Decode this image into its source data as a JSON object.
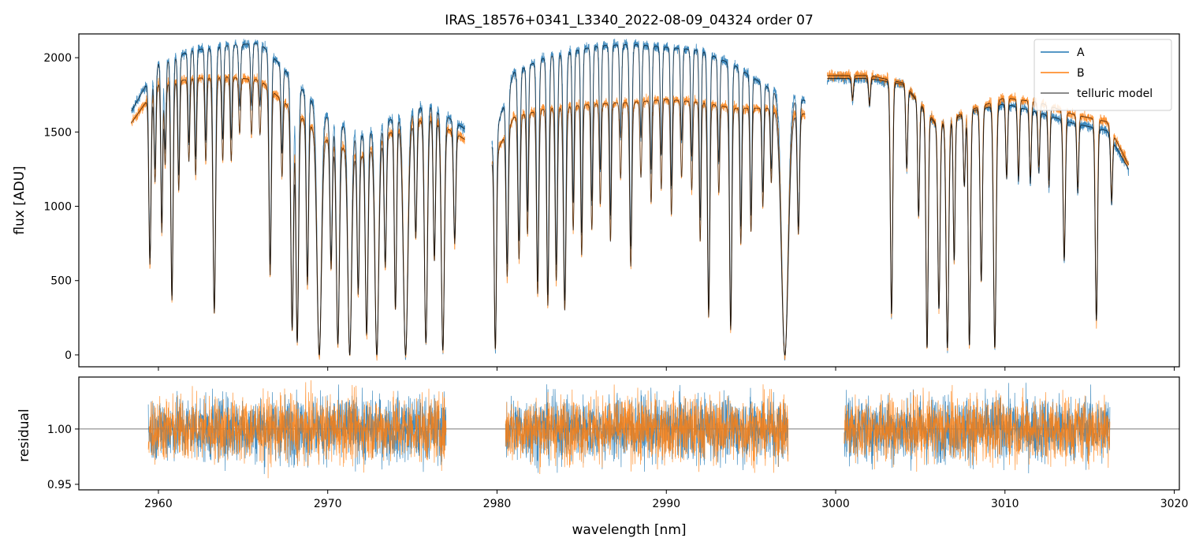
{
  "chart_data": [
    {
      "type": "line",
      "title": "IRAS_18576+0341_L3340_2022-08-09_04324  order 07",
      "xlabel": "",
      "ylabel": "flux [ADU]",
      "xlim": [
        2955.3,
        3020.3
      ],
      "ylim": [
        -80,
        2160
      ],
      "yticks": [
        0,
        500,
        1000,
        1500,
        2000
      ],
      "ytick_labels": [
        "0",
        "500",
        "1000",
        "1500",
        "2000"
      ],
      "legend_position": "top-right",
      "segments": [
        [
          2958.4,
          2978.1
        ],
        [
          2979.7,
          2998.2
        ],
        [
          2999.5,
          3017.3
        ]
      ],
      "series": [
        {
          "name": "A",
          "color": "#1f77b4"
        },
        {
          "name": "B",
          "color": "#ff7f0e"
        },
        {
          "name": "telluric model",
          "color": "#000000"
        }
      ],
      "continuum_A": [
        [
          2958.4,
          1640
        ],
        [
          2960.0,
          1960
        ],
        [
          2962.0,
          2050
        ],
        [
          2964.0,
          2080
        ],
        [
          2966.0,
          2100
        ],
        [
          2968.0,
          1850
        ],
        [
          2970.0,
          1600
        ],
        [
          2972.0,
          1480
        ],
        [
          2974.0,
          1600
        ],
        [
          2976.0,
          1690
        ],
        [
          2978.1,
          1520
        ],
        [
          2979.7,
          1420
        ],
        [
          2981.0,
          1900
        ],
        [
          2983.0,
          2010
        ],
        [
          2986.0,
          2080
        ],
        [
          2988.0,
          2090
        ],
        [
          2990.0,
          2070
        ],
        [
          2992.0,
          2050
        ],
        [
          2994.0,
          1950
        ],
        [
          2996.0,
          1800
        ],
        [
          2998.2,
          1710
        ],
        [
          2999.5,
          1860
        ],
        [
          3002.0,
          1860
        ],
        [
          3004.0,
          1820
        ],
        [
          3006.0,
          1540
        ],
        [
          3008.0,
          1640
        ],
        [
          3010.0,
          1690
        ],
        [
          3012.0,
          1630
        ],
        [
          3014.0,
          1560
        ],
        [
          3016.0,
          1510
        ],
        [
          3017.3,
          1250
        ]
      ],
      "continuum_B": [
        [
          2958.4,
          1560
        ],
        [
          2960.0,
          1820
        ],
        [
          2962.0,
          1860
        ],
        [
          2964.0,
          1870
        ],
        [
          2966.0,
          1850
        ],
        [
          2968.0,
          1640
        ],
        [
          2970.0,
          1450
        ],
        [
          2972.0,
          1340
        ],
        [
          2974.0,
          1520
        ],
        [
          2976.0,
          1600
        ],
        [
          2978.1,
          1450
        ],
        [
          2979.7,
          1300
        ],
        [
          2981.0,
          1600
        ],
        [
          2983.0,
          1660
        ],
        [
          2986.0,
          1690
        ],
        [
          2988.0,
          1700
        ],
        [
          2990.0,
          1720
        ],
        [
          2992.0,
          1700
        ],
        [
          2994.0,
          1660
        ],
        [
          2996.0,
          1660
        ],
        [
          2998.2,
          1620
        ],
        [
          2999.5,
          1880
        ],
        [
          3002.0,
          1880
        ],
        [
          3004.0,
          1830
        ],
        [
          3006.0,
          1550
        ],
        [
          3008.0,
          1650
        ],
        [
          3010.0,
          1730
        ],
        [
          3012.0,
          1700
        ],
        [
          3014.0,
          1620
        ],
        [
          3016.0,
          1570
        ],
        [
          3017.3,
          1280
        ]
      ],
      "absorption_lines": [
        [
          2959.5,
          0.65,
          0.06
        ],
        [
          2959.8,
          0.35,
          0.05
        ],
        [
          2960.2,
          0.55,
          0.05
        ],
        [
          2960.4,
          0.3,
          0.05
        ],
        [
          2960.8,
          0.8,
          0.06
        ],
        [
          2961.2,
          0.4,
          0.05
        ],
        [
          2961.8,
          0.3,
          0.05
        ],
        [
          2962.2,
          0.35,
          0.05
        ],
        [
          2962.8,
          0.3,
          0.05
        ],
        [
          2963.3,
          0.85,
          0.07
        ],
        [
          2963.8,
          0.3,
          0.05
        ],
        [
          2964.3,
          0.3,
          0.05
        ],
        [
          2964.8,
          0.2,
          0.05
        ],
        [
          2965.5,
          0.2,
          0.05
        ],
        [
          2966.0,
          0.2,
          0.05
        ],
        [
          2966.6,
          0.7,
          0.06
        ],
        [
          2967.3,
          0.3,
          0.05
        ],
        [
          2967.9,
          0.9,
          0.07
        ],
        [
          2968.2,
          0.95,
          0.07
        ],
        [
          2968.8,
          0.7,
          0.06
        ],
        [
          2969.5,
          1.0,
          0.12
        ],
        [
          2970.2,
          0.6,
          0.06
        ],
        [
          2970.6,
          0.95,
          0.08
        ],
        [
          2971.3,
          1.0,
          0.1
        ],
        [
          2971.8,
          0.7,
          0.06
        ],
        [
          2972.3,
          0.9,
          0.07
        ],
        [
          2972.9,
          1.0,
          0.1
        ],
        [
          2973.4,
          0.6,
          0.06
        ],
        [
          2974.0,
          0.8,
          0.06
        ],
        [
          2974.6,
          1.0,
          0.12
        ],
        [
          2975.2,
          0.5,
          0.06
        ],
        [
          2975.8,
          0.95,
          0.08
        ],
        [
          2976.3,
          0.6,
          0.06
        ],
        [
          2976.8,
          0.98,
          0.08
        ],
        [
          2977.5,
          0.5,
          0.06
        ],
        [
          2979.9,
          0.97,
          0.06
        ],
        [
          2980.6,
          0.65,
          0.06
        ],
        [
          2981.3,
          0.6,
          0.06
        ],
        [
          2981.8,
          0.5,
          0.05
        ],
        [
          2982.4,
          0.75,
          0.06
        ],
        [
          2983.0,
          0.8,
          0.06
        ],
        [
          2983.5,
          0.7,
          0.06
        ],
        [
          2984.0,
          0.82,
          0.07
        ],
        [
          2984.5,
          0.5,
          0.05
        ],
        [
          2985.0,
          0.6,
          0.05
        ],
        [
          2985.6,
          0.5,
          0.05
        ],
        [
          2986.1,
          0.4,
          0.05
        ],
        [
          2986.7,
          0.55,
          0.05
        ],
        [
          2987.3,
          0.3,
          0.05
        ],
        [
          2987.9,
          0.65,
          0.06
        ],
        [
          2988.5,
          0.3,
          0.05
        ],
        [
          2989.1,
          0.4,
          0.05
        ],
        [
          2989.7,
          0.35,
          0.05
        ],
        [
          2990.3,
          0.45,
          0.05
        ],
        [
          2990.9,
          0.3,
          0.05
        ],
        [
          2991.5,
          0.35,
          0.05
        ],
        [
          2992.0,
          0.55,
          0.05
        ],
        [
          2992.5,
          0.85,
          0.06
        ],
        [
          2993.1,
          0.35,
          0.05
        ],
        [
          2993.8,
          0.9,
          0.06
        ],
        [
          2994.4,
          0.55,
          0.05
        ],
        [
          2995.0,
          0.5,
          0.05
        ],
        [
          2995.7,
          0.4,
          0.05
        ],
        [
          2996.2,
          0.3,
          0.05
        ],
        [
          2997.0,
          1.0,
          0.18
        ],
        [
          2997.8,
          0.5,
          0.06
        ],
        [
          3001.0,
          0.08,
          0.05
        ],
        [
          3002.0,
          0.1,
          0.05
        ],
        [
          3003.3,
          0.85,
          0.06
        ],
        [
          3004.2,
          0.3,
          0.05
        ],
        [
          3004.9,
          0.45,
          0.05
        ],
        [
          3005.4,
          0.97,
          0.06
        ],
        [
          3006.1,
          0.8,
          0.06
        ],
        [
          3006.6,
          0.97,
          0.07
        ],
        [
          3007.0,
          0.6,
          0.05
        ],
        [
          3007.6,
          0.3,
          0.05
        ],
        [
          3007.9,
          0.96,
          0.06
        ],
        [
          3008.6,
          0.7,
          0.06
        ],
        [
          3009.4,
          0.97,
          0.07
        ],
        [
          3010.1,
          0.3,
          0.05
        ],
        [
          3010.8,
          0.3,
          0.05
        ],
        [
          3011.5,
          0.3,
          0.05
        ],
        [
          3012.0,
          0.25,
          0.05
        ],
        [
          3012.6,
          0.3,
          0.05
        ],
        [
          3013.5,
          0.6,
          0.06
        ],
        [
          3014.3,
          0.3,
          0.05
        ],
        [
          3015.4,
          0.85,
          0.06
        ],
        [
          3016.3,
          0.3,
          0.05
        ]
      ]
    },
    {
      "type": "line",
      "title": "",
      "xlabel": "wavelength [nm]",
      "ylabel": "residual",
      "xlim": [
        2955.3,
        3020.3
      ],
      "ylim": [
        0.945,
        1.047
      ],
      "xticks": [
        2960,
        2970,
        2980,
        2990,
        3000,
        3010,
        3020
      ],
      "xtick_labels": [
        "2960",
        "2970",
        "2980",
        "2990",
        "3000",
        "3010",
        "3020"
      ],
      "yticks": [
        0.95,
        1.0
      ],
      "ytick_labels": [
        "0.95",
        "1.00"
      ],
      "reference_line": 1.0,
      "segments": [
        [
          2959.4,
          2977.0
        ],
        [
          2980.5,
          2997.2
        ],
        [
          3000.5,
          3016.2
        ]
      ],
      "noise_amplitude": 0.02,
      "series": [
        {
          "name": "A",
          "color": "#1f77b4"
        },
        {
          "name": "B",
          "color": "#ff7f0e"
        }
      ]
    }
  ]
}
